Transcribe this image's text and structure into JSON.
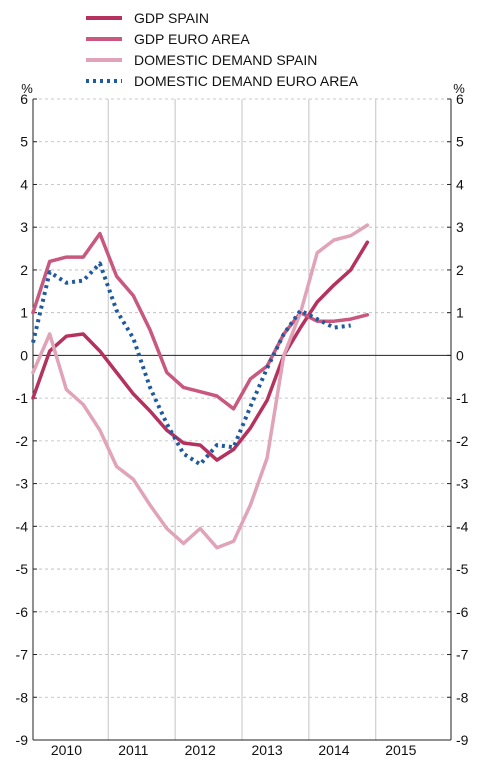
{
  "chart_data": {
    "type": "line",
    "title": "",
    "unit_left": "%",
    "unit_right": "%",
    "ylim": [
      -9,
      6
    ],
    "yticks": [
      6,
      5,
      4,
      3,
      2,
      1,
      0,
      -1,
      -2,
      -3,
      -4,
      -5,
      -6,
      -7,
      -8,
      -9
    ],
    "xlim": [
      2009.75,
      2016.0
    ],
    "year_labels": [
      "2010",
      "2011",
      "2012",
      "2013",
      "2014",
      "2015"
    ],
    "grid": true,
    "legend_position": "top",
    "series": [
      {
        "name": "GDP SPAIN",
        "color": "#b5325e",
        "style": "solid",
        "x": [
          2009.75,
          2010.0,
          2010.25,
          2010.5,
          2010.75,
          2011.0,
          2011.25,
          2011.5,
          2011.75,
          2012.0,
          2012.25,
          2012.5,
          2012.75,
          2013.0,
          2013.25,
          2013.5,
          2013.75,
          2014.0,
          2014.25,
          2014.5,
          2014.75
        ],
        "values": [
          -1.0,
          0.1,
          0.45,
          0.5,
          0.1,
          -0.4,
          -0.9,
          -1.3,
          -1.75,
          -2.05,
          -2.1,
          -2.45,
          -2.2,
          -1.7,
          -1.05,
          0.0,
          0.65,
          1.25,
          1.65,
          2.0,
          2.65
        ]
      },
      {
        "name": "GDP EURO AREA",
        "color": "#c9587f",
        "style": "solid",
        "x": [
          2009.75,
          2010.0,
          2010.25,
          2010.5,
          2010.75,
          2011.0,
          2011.25,
          2011.5,
          2011.75,
          2012.0,
          2012.25,
          2012.5,
          2012.75,
          2013.0,
          2013.25,
          2013.5,
          2013.75,
          2014.0,
          2014.25,
          2014.5,
          2014.75
        ],
        "values": [
          1.0,
          2.2,
          2.3,
          2.3,
          2.85,
          1.85,
          1.4,
          0.6,
          -0.4,
          -0.75,
          -0.85,
          -0.95,
          -1.25,
          -0.55,
          -0.25,
          0.5,
          1.0,
          0.8,
          0.8,
          0.85,
          0.95
        ]
      },
      {
        "name": "DOMESTIC DEMAND SPAIN",
        "color": "#e0a3b8",
        "style": "solid",
        "x": [
          2009.75,
          2010.0,
          2010.25,
          2010.5,
          2010.75,
          2011.0,
          2011.25,
          2011.5,
          2011.75,
          2012.0,
          2012.25,
          2012.5,
          2012.75,
          2013.0,
          2013.25,
          2013.5,
          2013.75,
          2014.0,
          2014.25,
          2014.5,
          2014.75
        ],
        "values": [
          -0.4,
          0.5,
          -0.8,
          -1.15,
          -1.75,
          -2.6,
          -2.9,
          -3.5,
          -4.05,
          -4.4,
          -4.05,
          -4.5,
          -4.35,
          -3.5,
          -2.4,
          0.0,
          1.0,
          2.4,
          2.7,
          2.8,
          3.05
        ]
      },
      {
        "name": "DOMESTIC DEMAND EURO AREA",
        "color": "#1f5a9e",
        "style": "dotted",
        "x": [
          2009.75,
          2010.0,
          2010.25,
          2010.5,
          2010.75,
          2011.0,
          2011.25,
          2011.5,
          2011.75,
          2012.0,
          2012.25,
          2012.5,
          2012.75,
          2013.0,
          2013.25,
          2013.5,
          2013.75,
          2014.0,
          2014.25,
          2014.5
        ],
        "values": [
          0.3,
          1.95,
          1.7,
          1.75,
          2.15,
          1.05,
          0.4,
          -0.75,
          -1.6,
          -2.3,
          -2.55,
          -2.1,
          -2.15,
          -1.2,
          -0.3,
          0.5,
          1.05,
          0.85,
          0.65,
          0.7
        ]
      }
    ]
  }
}
